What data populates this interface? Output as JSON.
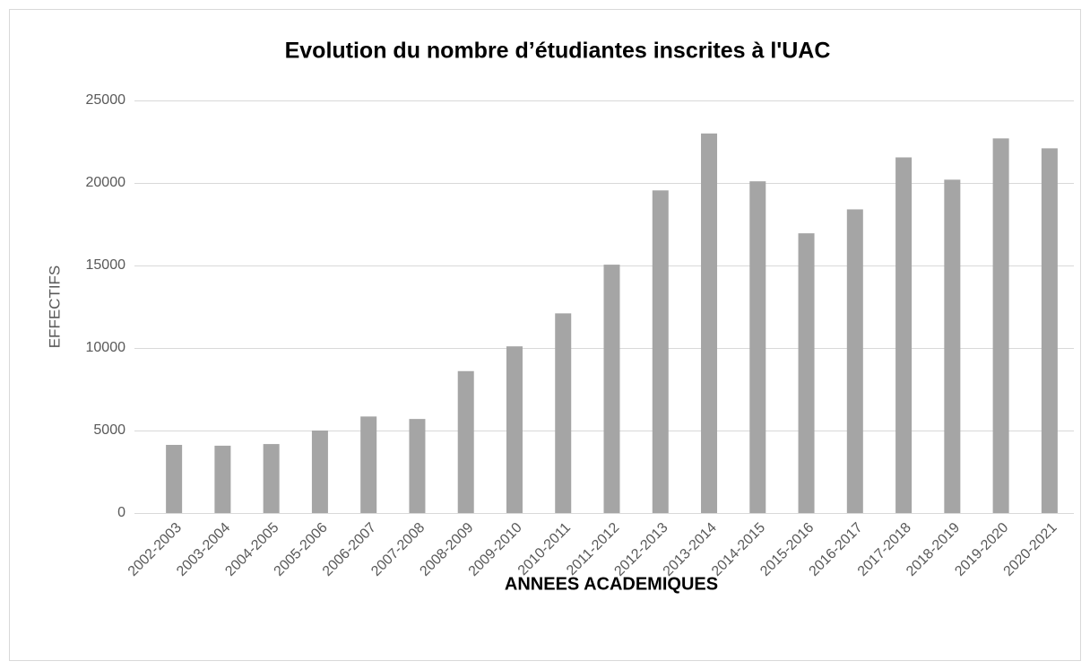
{
  "chart_data": {
    "type": "bar",
    "title": "Evolution du nombre d’étudiantes inscrites à l'UAC",
    "x_label": "ANNEES ACADEMIQUES",
    "y_label": "EFFECTIFS",
    "categories": [
      "2002-2003",
      "2003-2004",
      "2004-2005",
      "2005-2006",
      "2006-2007",
      "2007-2008",
      "2008-2009",
      "2009-2010",
      "2010-2011",
      "2011-2012",
      "2012-2013",
      "2013-2014",
      "2014-2015",
      "2015-2016",
      "2016-2017",
      "2017-2018",
      "2018-2019",
      "2019-2020",
      "2020-2021"
    ],
    "values": [
      4130,
      4080,
      4180,
      5000,
      5850,
      5700,
      8600,
      10100,
      12100,
      15050,
      19550,
      23000,
      20100,
      16950,
      18400,
      21550,
      20200,
      22700,
      22100
    ],
    "color": "#a5a5a5",
    "ylim": [
      0,
      25000
    ],
    "yticks": [
      0,
      5000,
      10000,
      15000,
      20000,
      25000
    ],
    "grid": true
  }
}
